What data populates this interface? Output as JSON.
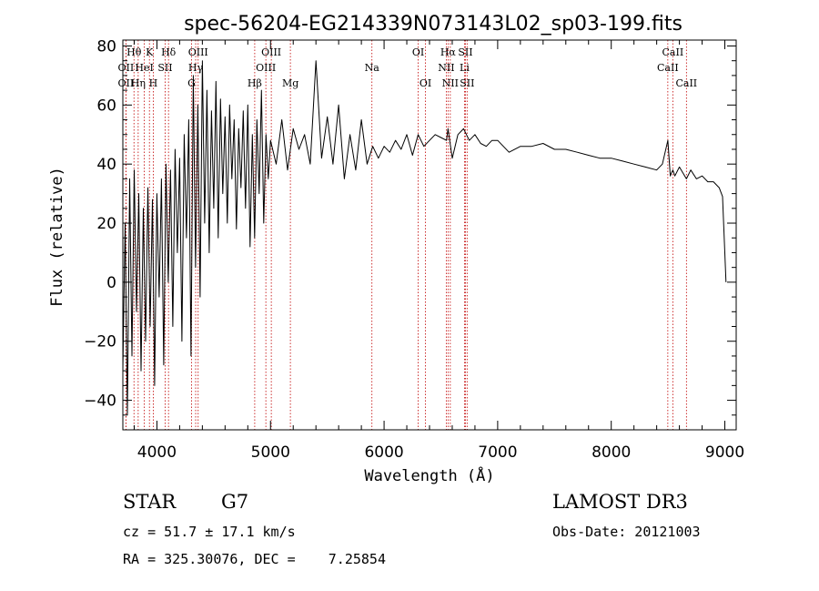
{
  "chart_data": {
    "type": "line",
    "title": "spec-56204-EG214339N073143L02_sp03-199.fits",
    "xlabel": "Wavelength (Å)",
    "ylabel": "Flux (relative)",
    "xlim": [
      3700,
      9100
    ],
    "ylim": [
      -50,
      82
    ],
    "x_ticks": [
      4000,
      5000,
      6000,
      7000,
      8000,
      9000
    ],
    "y_ticks": [
      -40,
      -20,
      0,
      20,
      40,
      60,
      80
    ],
    "series": [
      {
        "name": "spectrum",
        "x": [
          3700,
          3720,
          3740,
          3760,
          3780,
          3800,
          3820,
          3840,
          3860,
          3880,
          3900,
          3920,
          3940,
          3960,
          3980,
          4000,
          4020,
          4040,
          4060,
          4080,
          4100,
          4120,
          4140,
          4160,
          4180,
          4200,
          4220,
          4240,
          4260,
          4280,
          4300,
          4320,
          4340,
          4360,
          4380,
          4400,
          4420,
          4440,
          4460,
          4480,
          4500,
          4520,
          4540,
          4560,
          4580,
          4600,
          4620,
          4640,
          4660,
          4680,
          4700,
          4720,
          4740,
          4760,
          4780,
          4800,
          4820,
          4840,
          4860,
          4880,
          4900,
          4920,
          4940,
          4960,
          4980,
          5000,
          5050,
          5100,
          5150,
          5200,
          5250,
          5300,
          5350,
          5400,
          5450,
          5500,
          5550,
          5600,
          5650,
          5700,
          5750,
          5800,
          5850,
          5900,
          5950,
          6000,
          6050,
          6100,
          6150,
          6200,
          6250,
          6300,
          6350,
          6400,
          6450,
          6500,
          6550,
          6563,
          6600,
          6650,
          6700,
          6750,
          6800,
          6850,
          6900,
          6950,
          7000,
          7100,
          7200,
          7300,
          7400,
          7500,
          7600,
          7700,
          7800,
          7900,
          8000,
          8100,
          8200,
          8300,
          8400,
          8450,
          8498,
          8520,
          8542,
          8560,
          8600,
          8662,
          8700,
          8750,
          8800,
          8850,
          8900,
          8950,
          8980,
          9000,
          9010
        ],
        "values": [
          -30,
          20,
          -45,
          35,
          -25,
          38,
          -10,
          30,
          -30,
          25,
          -20,
          32,
          -15,
          28,
          -35,
          30,
          -5,
          35,
          -28,
          40,
          0,
          38,
          -15,
          45,
          10,
          42,
          -20,
          50,
          15,
          55,
          -25,
          70,
          5,
          60,
          -5,
          75,
          20,
          65,
          10,
          58,
          25,
          68,
          15,
          62,
          30,
          56,
          20,
          60,
          35,
          55,
          18,
          52,
          32,
          58,
          25,
          60,
          12,
          50,
          15,
          55,
          30,
          65,
          20,
          50,
          35,
          48,
          40,
          55,
          38,
          52,
          45,
          50,
          40,
          75,
          42,
          56,
          40,
          60,
          35,
          50,
          38,
          55,
          40,
          46,
          42,
          46,
          44,
          48,
          45,
          50,
          43,
          50,
          46,
          48,
          50,
          49,
          48,
          52,
          42,
          50,
          52,
          48,
          50,
          47,
          46,
          48,
          48,
          44,
          46,
          46,
          47,
          45,
          45,
          44,
          43,
          42,
          42,
          41,
          40,
          39,
          38,
          40,
          48,
          36,
          38,
          36,
          39,
          35,
          38,
          35,
          36,
          34,
          34,
          32,
          29,
          10,
          0
        ]
      }
    ],
    "spectral_lines": [
      {
        "label": "Hθ",
        "wavelength": 3798,
        "row": 1
      },
      {
        "label": "OII",
        "wavelength": 3727,
        "row": 2
      },
      {
        "label": "OII",
        "wavelength": 3727,
        "row": 3
      },
      {
        "label": "K",
        "wavelength": 3934,
        "row": 1
      },
      {
        "label": "HeI",
        "wavelength": 3889,
        "row": 2
      },
      {
        "label": "Hη",
        "wavelength": 3835,
        "row": 3
      },
      {
        "label": "Hδ",
        "wavelength": 4102,
        "row": 1
      },
      {
        "label": "SII",
        "wavelength": 4072,
        "row": 2
      },
      {
        "label": "H",
        "wavelength": 3968,
        "row": 3
      },
      {
        "label": "OIII",
        "wavelength": 4363,
        "row": 1
      },
      {
        "label": "Hγ",
        "wavelength": 4341,
        "row": 2
      },
      {
        "label": "G",
        "wavelength": 4305,
        "row": 3
      },
      {
        "label": "OIII",
        "wavelength": 5007,
        "row": 1
      },
      {
        "label": "OIII",
        "wavelength": 4959,
        "row": 2
      },
      {
        "label": "Hβ",
        "wavelength": 4861,
        "row": 3
      },
      {
        "label": "Mg",
        "wavelength": 5175,
        "row": 3
      },
      {
        "label": "Na",
        "wavelength": 5893,
        "row": 2
      },
      {
        "label": "OI",
        "wavelength": 6300,
        "row": 1
      },
      {
        "label": "OI",
        "wavelength": 6364,
        "row": 3
      },
      {
        "label": "Hα",
        "wavelength": 6563,
        "row": 1
      },
      {
        "label": "SII",
        "wavelength": 6716,
        "row": 1
      },
      {
        "label": "NII",
        "wavelength": 6548,
        "row": 2
      },
      {
        "label": "Li",
        "wavelength": 6708,
        "row": 2
      },
      {
        "label": "NII",
        "wavelength": 6583,
        "row": 3
      },
      {
        "label": "SII",
        "wavelength": 6731,
        "row": 3
      },
      {
        "label": "CaII",
        "wavelength": 8542,
        "row": 1
      },
      {
        "label": "CaII",
        "wavelength": 8498,
        "row": 2
      },
      {
        "label": "CaII",
        "wavelength": 8662,
        "row": 3
      }
    ],
    "line_color": "#000000",
    "marker_line_color": "#c00000"
  },
  "info": {
    "object_class": "STAR",
    "subclass": "G7",
    "survey": "LAMOST DR3",
    "cz": "cz = 51.7 ± 17.1 km/s",
    "obs_date": "Obs-Date: 20121003",
    "coords": "RA = 325.30076, DEC =    7.25854"
  }
}
